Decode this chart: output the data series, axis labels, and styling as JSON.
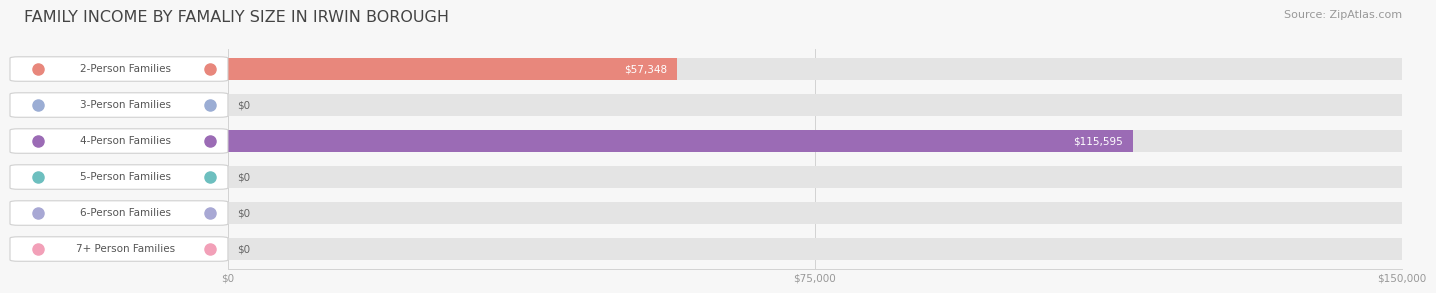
{
  "title": "FAMILY INCOME BY FAMALIY SIZE IN IRWIN BOROUGH",
  "source": "Source: ZipAtlas.com",
  "categories": [
    "2-Person Families",
    "3-Person Families",
    "4-Person Families",
    "5-Person Families",
    "6-Person Families",
    "7+ Person Families"
  ],
  "values": [
    57348,
    0,
    115595,
    0,
    0,
    0
  ],
  "bar_colors": [
    "#E8877C",
    "#9BADD4",
    "#9B6BB5",
    "#6DBFBF",
    "#A8A8D4",
    "#F2A0B8"
  ],
  "value_labels": [
    "$57,348",
    "$0",
    "$115,595",
    "$0",
    "$0",
    "$0"
  ],
  "value_label_inside_color": "#ffffff",
  "value_label_outside_color": "#666666",
  "xlim": [
    0,
    150000
  ],
  "xticks": [
    0,
    75000,
    150000
  ],
  "xtick_labels": [
    "$0",
    "$75,000",
    "$150,000"
  ],
  "background_color": "#f7f7f7",
  "bar_bg_color": "#e4e4e4",
  "label_box_color": "#ffffff",
  "label_text_color": "#555555",
  "title_fontsize": 11.5,
  "source_fontsize": 8,
  "bar_label_fontsize": 7.5,
  "axis_label_fontsize": 7.5,
  "cat_label_fontsize": 7.5
}
